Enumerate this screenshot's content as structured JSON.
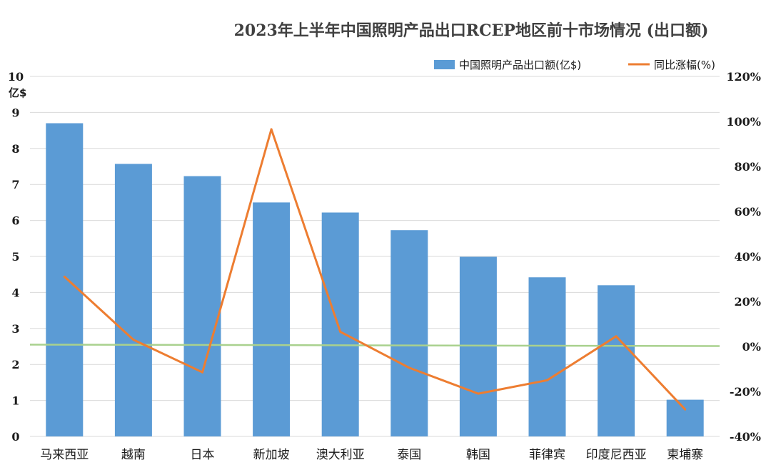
{
  "chart_data": {
    "type": "bar",
    "title": "2023年上半年中国照明产品出口RCEP地区前十市场情况 (出口额)",
    "categories": [
      "马来西亚",
      "越南",
      "日本",
      "新加坡",
      "澳大利亚",
      "泰国",
      "韩国",
      "菲律宾",
      "印度尼西亚",
      "柬埔寨"
    ],
    "y_unit_label": "亿$",
    "ylim": [
      0,
      10
    ],
    "y_ticks": [
      0,
      1,
      2,
      3,
      4,
      5,
      6,
      7,
      8,
      9,
      10
    ],
    "y2lim": [
      -40,
      120
    ],
    "y2_ticks": [
      -40,
      -20,
      0,
      20,
      40,
      60,
      80,
      100,
      120
    ],
    "y2_tick_labels": [
      "-40%",
      "-20%",
      "0%",
      "20%",
      "40%",
      "60%",
      "80%",
      "100%",
      "120%"
    ],
    "grid": true,
    "legend_position": "top-right",
    "series": [
      {
        "name": "中国照明产品出口额(亿$)",
        "type": "bar",
        "axis": "left",
        "color": "#5b9bd5",
        "values": [
          8.7,
          7.57,
          7.23,
          6.5,
          6.22,
          5.73,
          4.99,
          4.42,
          4.2,
          1.02
        ]
      },
      {
        "name": "同比涨幅(%)",
        "type": "line",
        "axis": "right",
        "color": "#ed7d31",
        "values": [
          31,
          3,
          -11.5,
          96.5,
          6.5,
          -9.5,
          -21,
          -15,
          4.5,
          -28
        ]
      }
    ],
    "reference_line": {
      "axis": "left",
      "value": 2.55,
      "color": "#a9d18e"
    }
  }
}
